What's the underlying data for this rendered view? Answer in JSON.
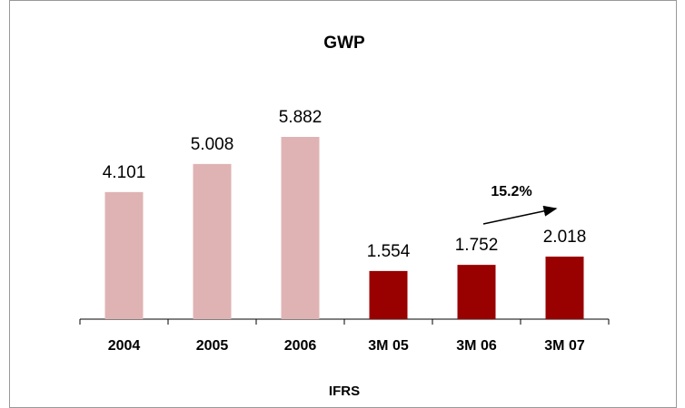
{
  "chart_data": {
    "type": "bar",
    "title": "GWP",
    "x_label": "IFRS",
    "categories": [
      "2004",
      "2005",
      "2006",
      "3M 05",
      "3M 06",
      "3M 07"
    ],
    "values": [
      4.101,
      5.008,
      5.882,
      1.554,
      1.752,
      2.018
    ],
    "colors": [
      "#dfb3b3",
      "#dfb3b3",
      "#dfb3b3",
      "#990000",
      "#990000",
      "#990000"
    ],
    "annotation": "15.2%"
  }
}
